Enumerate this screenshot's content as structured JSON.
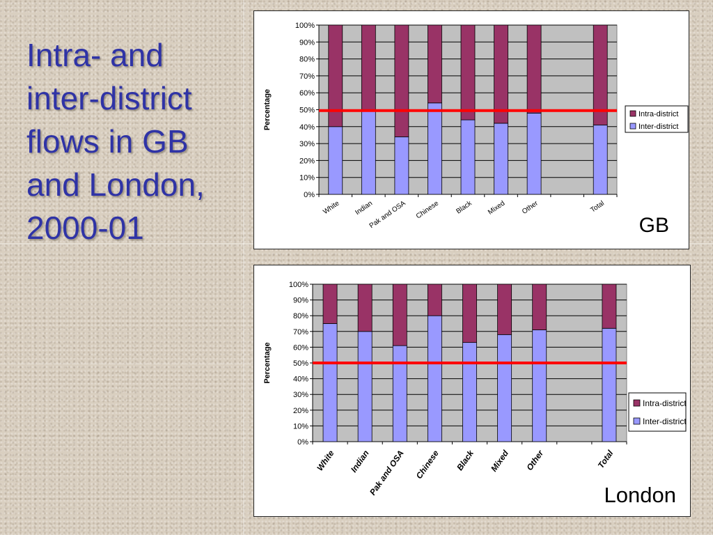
{
  "slide": {
    "title": "Intra- and inter-district flows in GB and London, 2000-01"
  },
  "colors": {
    "intra": "#993366",
    "inter": "#9999ff",
    "plot_bg": "#c0c0c0",
    "reference_line": "#ff0000",
    "title": "#2f33a6"
  },
  "chart_data": [
    {
      "id": "gb",
      "type": "bar",
      "stacked": true,
      "panel_label": "GB",
      "ylabel": "Percentage",
      "ylim": [
        0,
        100
      ],
      "yticks": [
        "0%",
        "10%",
        "20%",
        "30%",
        "40%",
        "50%",
        "60%",
        "70%",
        "80%",
        "90%",
        "100%"
      ],
      "categories": [
        "White",
        "Indian",
        "Pak and OSA",
        "Chinese",
        "Black",
        "Mixed",
        "Other",
        "",
        "Total"
      ],
      "series": [
        {
          "name": "Inter-district",
          "values": [
            40,
            50,
            34,
            54,
            44,
            42,
            48,
            null,
            41
          ]
        },
        {
          "name": "Intra-district",
          "values": [
            60,
            50,
            66,
            46,
            56,
            58,
            52,
            null,
            59
          ]
        }
      ],
      "reference_line": 49.5,
      "grid": true,
      "legend": "right"
    },
    {
      "id": "london",
      "type": "bar",
      "stacked": true,
      "panel_label": "London",
      "ylabel": "Percentage",
      "ylim": [
        0,
        100
      ],
      "yticks": [
        "0%",
        "10%",
        "20%",
        "30%",
        "40%",
        "50%",
        "60%",
        "70%",
        "80%",
        "90%",
        "100%"
      ],
      "categories": [
        "White",
        "Indian",
        "Pak and OSA",
        "Chinese",
        "Black",
        "Mixed",
        "Other",
        "",
        "Total"
      ],
      "series": [
        {
          "name": "Inter-district",
          "values": [
            75,
            70,
            61,
            80,
            63,
            68,
            71,
            null,
            72
          ]
        },
        {
          "name": "Intra-district",
          "values": [
            25,
            30,
            39,
            20,
            37,
            32,
            29,
            null,
            28
          ]
        }
      ],
      "reference_line": 50,
      "grid": true,
      "legend": "right"
    }
  ]
}
